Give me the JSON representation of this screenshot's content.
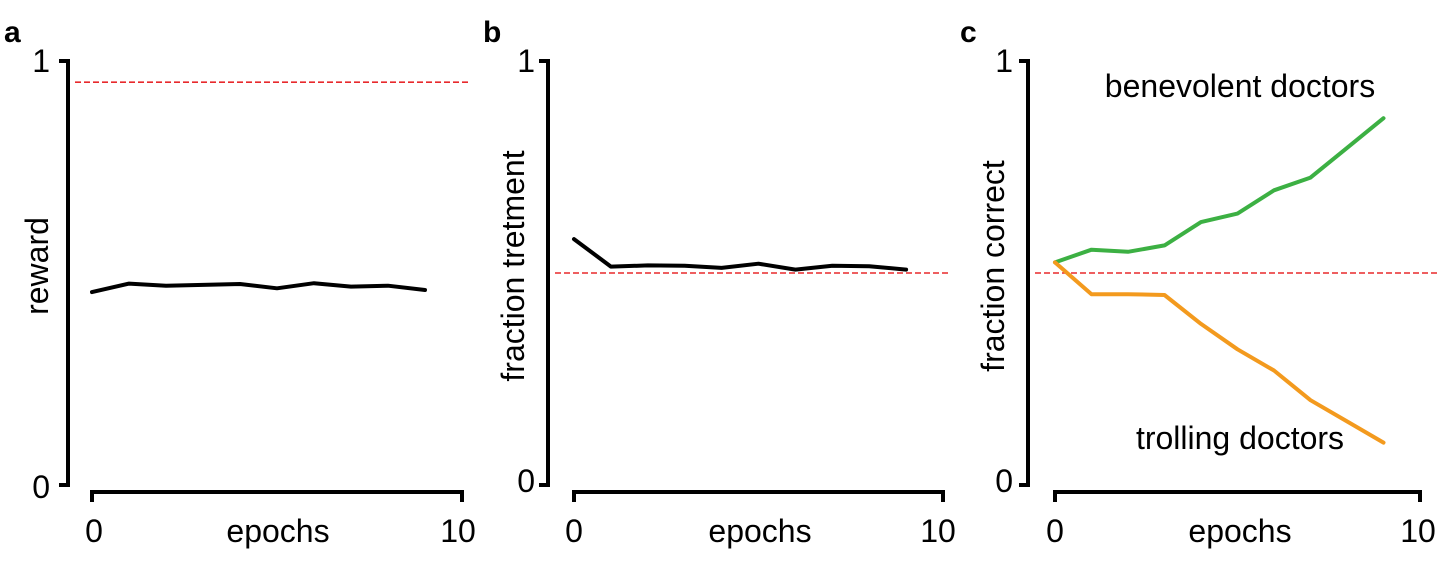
{
  "colors": {
    "ref_line": "#e8292c",
    "benevolent": "#3cb043",
    "trolling": "#f39a1e",
    "series": "#000000"
  },
  "chart_data": [
    {
      "panel": "a",
      "type": "line",
      "title": "",
      "xlabel": "epochs",
      "ylabel": "reward",
      "xlim": [
        0,
        10
      ],
      "ylim": [
        0,
        1
      ],
      "x_ticks": [
        "0",
        "10"
      ],
      "y_ticks": [
        "0",
        "1"
      ],
      "reference_line": 0.95,
      "x": [
        0,
        1,
        2,
        3,
        4,
        5,
        6,
        7,
        8,
        9
      ],
      "series": [
        {
          "values": [
            0.455,
            0.475,
            0.47,
            0.472,
            0.474,
            0.464,
            0.476,
            0.468,
            0.47,
            0.46
          ]
        }
      ]
    },
    {
      "panel": "b",
      "type": "line",
      "title": "",
      "xlabel": "epochs",
      "ylabel": "fraction tretment",
      "xlim": [
        0,
        10
      ],
      "ylim": [
        0,
        1
      ],
      "x_ticks": [
        "0",
        "10"
      ],
      "y_ticks": [
        "0",
        "1"
      ],
      "reference_line": 0.5,
      "x": [
        0,
        1,
        2,
        3,
        4,
        5,
        6,
        7,
        8,
        9
      ],
      "series": [
        {
          "values": [
            0.58,
            0.515,
            0.518,
            0.517,
            0.512,
            0.522,
            0.508,
            0.517,
            0.516,
            0.508
          ]
        }
      ]
    },
    {
      "panel": "c",
      "type": "line",
      "title": "",
      "xlabel": "epochs",
      "ylabel": "fraction correct",
      "xlim": [
        0,
        10
      ],
      "ylim": [
        0,
        1
      ],
      "x_ticks": [
        "0",
        "10"
      ],
      "y_ticks": [
        "0",
        "1"
      ],
      "reference_line": 0.5,
      "x": [
        0,
        1,
        2,
        3,
        4,
        5,
        6,
        7,
        8,
        9
      ],
      "series": [
        {
          "name": "benevolent doctors",
          "color": "#3cb043",
          "values": [
            0.525,
            0.555,
            0.55,
            0.565,
            0.62,
            0.64,
            0.695,
            0.725,
            0.795,
            0.865
          ]
        },
        {
          "name": "trolling doctors",
          "color": "#f39a1e",
          "values": [
            0.525,
            0.45,
            0.45,
            0.448,
            0.38,
            0.32,
            0.27,
            0.2,
            0.15,
            0.1
          ]
        }
      ]
    }
  ]
}
